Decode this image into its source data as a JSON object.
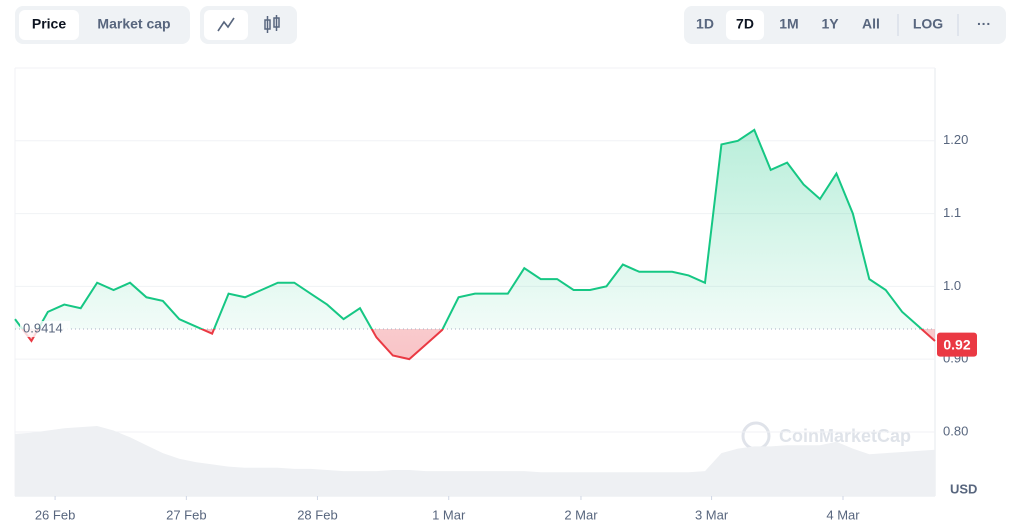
{
  "chart_data": {
    "type": "line",
    "tabs": [
      "Price",
      "Market cap"
    ],
    "ranges": [
      "1D",
      "7D",
      "1M",
      "1Y",
      "All",
      "LOG"
    ],
    "more": "···",
    "currency": "USD",
    "watermark": "CoinMarketCap",
    "baseline": {
      "value": 0.9414,
      "label": "0.9414"
    },
    "current": {
      "value": 0.92,
      "label": "0.92"
    },
    "up_color": "#16c784",
    "down_color": "#ea3943",
    "xlim": [
      0,
      56
    ],
    "xticks": [
      {
        "value": 2.44,
        "label": "26 Feb"
      },
      {
        "value": 10.43,
        "label": "27 Feb"
      },
      {
        "value": 18.41,
        "label": "28 Feb"
      },
      {
        "value": 26.4,
        "label": "1 Mar"
      },
      {
        "value": 34.45,
        "label": "2 Mar"
      },
      {
        "value": 42.4,
        "label": "3 Mar"
      },
      {
        "value": 50.4,
        "label": "4 Mar"
      }
    ],
    "ylim": [
      0.712,
      1.3
    ],
    "yticks": [
      {
        "value": 0.8,
        "label": "0.80"
      },
      {
        "value": 0.9,
        "label": "0.90"
      },
      {
        "value": 1.0,
        "label": "1.0"
      },
      1.1,
      {
        "value": 1.2,
        "label": "1.20"
      }
    ],
    "grid": true,
    "series": [
      {
        "name": "Price",
        "values": [
          0.955,
          0.925,
          0.965,
          0.975,
          0.97,
          1.005,
          0.995,
          1.005,
          0.985,
          0.98,
          0.955,
          0.945,
          0.935,
          0.99,
          0.985,
          0.995,
          1.005,
          1.005,
          0.99,
          0.975,
          0.955,
          0.97,
          0.93,
          0.905,
          0.9,
          0.92,
          0.94,
          0.985,
          0.99,
          0.99,
          0.99,
          1.025,
          1.01,
          1.01,
          0.995,
          0.995,
          1.0,
          1.03,
          1.02,
          1.02,
          1.02,
          1.015,
          1.005,
          1.195,
          1.2,
          1.215,
          1.16,
          1.17,
          1.14,
          1.12,
          1.155,
          1.1,
          1.01,
          0.995,
          0.965,
          0.945,
          0.925
        ]
      },
      {
        "name": "Volume",
        "color": "#eef0f3",
        "values": [
          55,
          56,
          58,
          60,
          61,
          62,
          58,
          52,
          45,
          38,
          33,
          30,
          28,
          26,
          25,
          25,
          25,
          24,
          24,
          23,
          22,
          22,
          22,
          23,
          23,
          22,
          22,
          22,
          22,
          22,
          22,
          22,
          21,
          21,
          21,
          21,
          21,
          21,
          21,
          21,
          21,
          21,
          22,
          38,
          42,
          44,
          44,
          45,
          45,
          45,
          48,
          42,
          37,
          38,
          39,
          40,
          41
        ]
      }
    ]
  }
}
